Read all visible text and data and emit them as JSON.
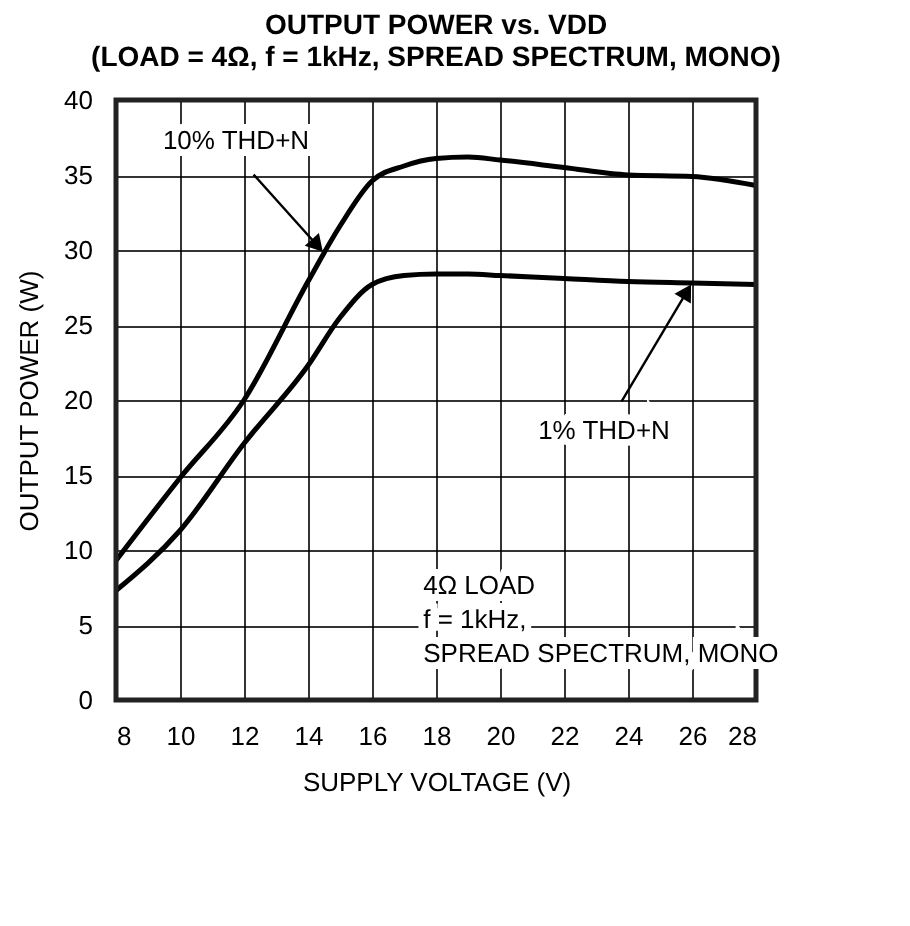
{
  "chart_data": {
    "type": "line",
    "title": "OUTPUT POWER vs. VDD",
    "subtitle": "(LOAD = 4Ω, f = 1kHz, SPREAD SPECTRUM, MONO)",
    "xlabel": "SUPPLY VOLTAGE (V)",
    "ylabel": "OUTPUT POWER (W)",
    "x": [
      8,
      10,
      12,
      14,
      15,
      16,
      17,
      18,
      19,
      20,
      22,
      24,
      26,
      28
    ],
    "series": [
      {
        "color": "#000000",
        "values": [
          9.3,
          14.8,
          20,
          27.9,
          31.6,
          34.6,
          35.6,
          36.1,
          36.2,
          36.0,
          35.5,
          35.0,
          34.9,
          34.3
        ]
      },
      {
        "color": "#000000",
        "values": [
          7.3,
          11.3,
          17.1,
          22.3,
          25.5,
          27.7,
          28.3,
          28.4,
          28.4,
          28.3,
          28.1,
          27.9,
          27.8,
          27.7
        ]
      }
    ],
    "annotations": [
      {
        "text": "10% THD+N",
        "x": 14.5,
        "y": 29.8
      },
      {
        "text": "1% THD+N",
        "x": 26,
        "y": 27.8
      },
      "4Ω LOAD\nf = 1kHz,\nSPREAD SPECTRUM, MONO"
    ],
    "xlim": [
      8,
      28
    ],
    "xticks": [
      8,
      10,
      12,
      14,
      16,
      18,
      20,
      22,
      24,
      26,
      28
    ],
    "ylim": [
      0,
      40
    ],
    "yticks": [
      0,
      5,
      10,
      15,
      20,
      25,
      30,
      35,
      40
    ],
    "grid": true,
    "marker": "none",
    "line_style": "solid"
  }
}
